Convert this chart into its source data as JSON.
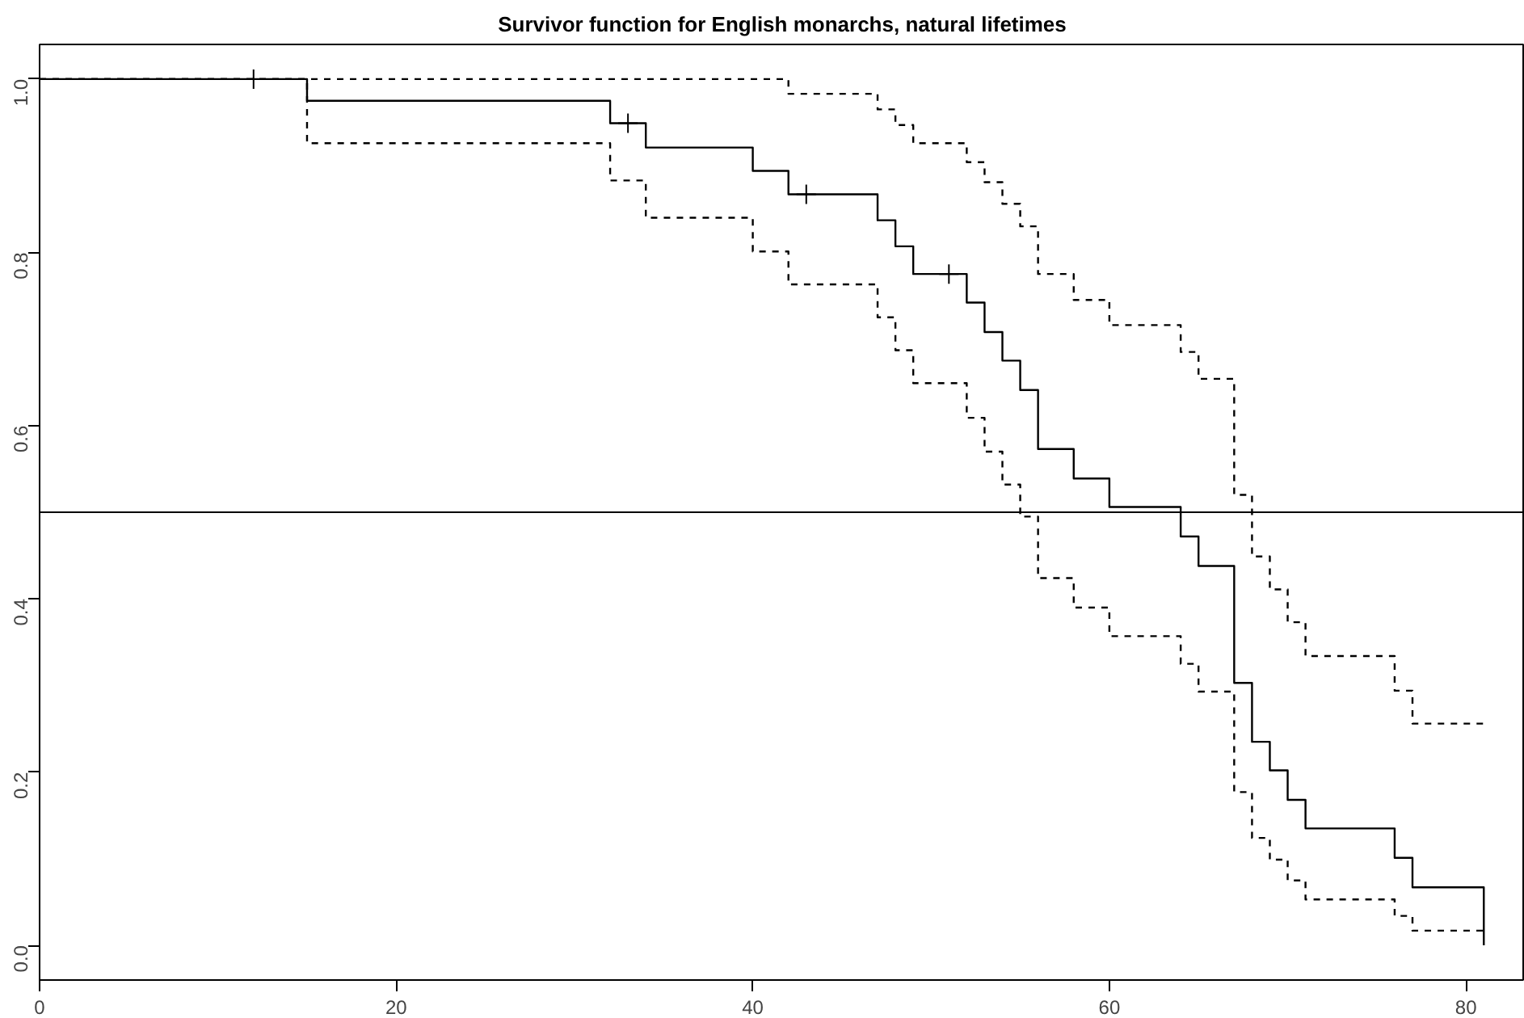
{
  "chart_data": {
    "type": "step",
    "title": "Survivor function for English monarchs, natural lifetimes",
    "xlim": [
      0,
      83.3
    ],
    "ylim": [
      -0.04,
      1.04
    ],
    "xticks": [
      0,
      20,
      40,
      60,
      80
    ],
    "yticks": [
      {
        "value": 0,
        "label": "0.0"
      },
      0.2,
      0.4,
      0.6,
      0.8,
      {
        "value": 1,
        "label": "1.0"
      }
    ],
    "grid": false,
    "ref_lines": [
      {
        "axis": "y",
        "value": 0.5,
        "color": "#000000",
        "line_style": "solid"
      }
    ],
    "series": [
      {
        "color": "#000000",
        "line_style": "solid",
        "x": [
          0,
          15,
          32,
          34,
          40,
          42,
          47,
          48,
          49,
          52,
          53,
          54,
          55,
          56,
          58,
          60,
          64,
          65,
          67,
          68,
          69,
          70,
          71,
          76,
          77,
          81
        ],
        "values": [
          1.0,
          0.975,
          0.949,
          0.921,
          0.894,
          0.867,
          0.837,
          0.807,
          0.775,
          0.742,
          0.708,
          0.675,
          0.641,
          0.573,
          0.539,
          0.506,
          0.472,
          0.438,
          0.303,
          0.235,
          0.202,
          0.168,
          0.135,
          0.101,
          0.067,
          0.0
        ]
      },
      {
        "color": "#000000",
        "line_style": "dashed",
        "x": [
          0,
          42,
          47,
          48,
          49,
          52,
          53,
          54,
          55,
          56,
          58,
          60,
          64,
          65,
          67,
          68,
          69,
          70,
          71,
          76,
          77,
          81
        ],
        "values": [
          1.0,
          0.983,
          0.965,
          0.947,
          0.926,
          0.904,
          0.881,
          0.856,
          0.83,
          0.775,
          0.745,
          0.716,
          0.685,
          0.654,
          0.52,
          0.449,
          0.411,
          0.373,
          0.334,
          0.294,
          0.256,
          0.256
        ]
      },
      {
        "color": "#000000",
        "line_style": "dashed",
        "x": [
          0,
          15,
          32,
          34,
          40,
          42,
          47,
          48,
          49,
          52,
          53,
          54,
          55,
          56,
          58,
          60,
          64,
          65,
          67,
          68,
          69,
          70,
          71,
          76,
          77,
          81
        ],
        "values": [
          1.0,
          0.926,
          0.883,
          0.84,
          0.801,
          0.763,
          0.725,
          0.687,
          0.649,
          0.609,
          0.57,
          0.532,
          0.495,
          0.424,
          0.39,
          0.357,
          0.325,
          0.293,
          0.177,
          0.124,
          0.099,
          0.075,
          0.053,
          0.034,
          0.017,
          0.017
        ]
      },
      {
        "type": "scatter",
        "color": "#000000",
        "marker": "cross",
        "x": [
          12,
          33,
          43,
          51
        ],
        "values": [
          1.0,
          0.949,
          0.867,
          0.775
        ]
      }
    ]
  }
}
